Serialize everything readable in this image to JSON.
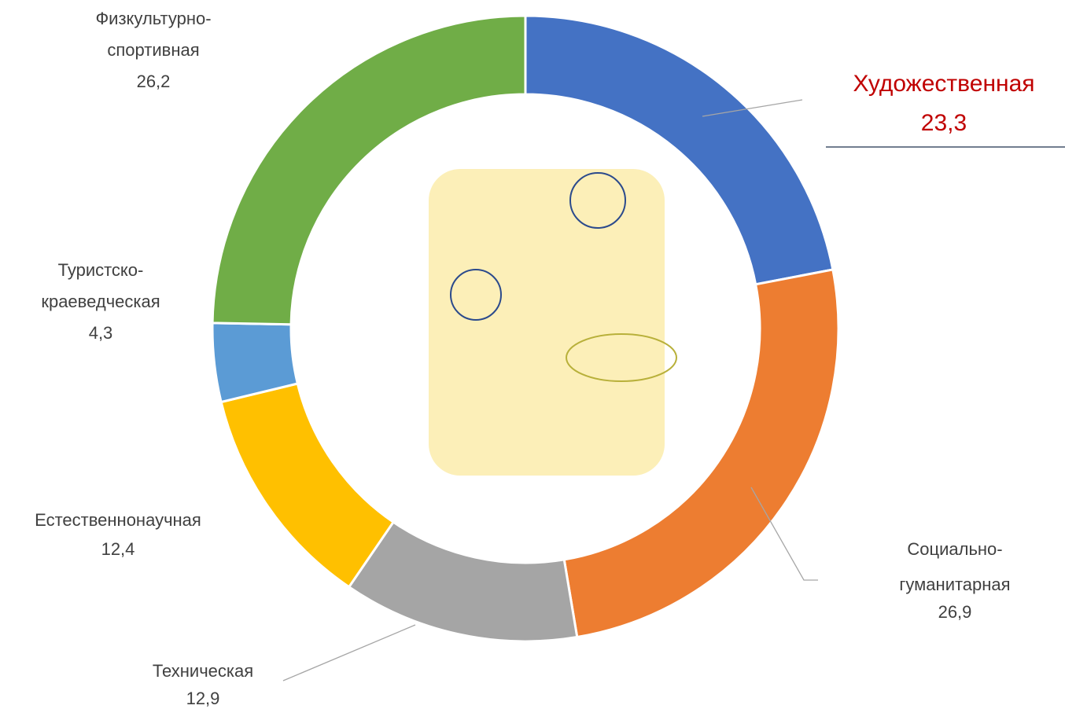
{
  "chart_data": {
    "type": "donut",
    "categories": [
      "Художественная",
      "Социально-гуманитарная",
      "Техническая",
      "Естественнонаучная",
      "Туристско-краеведческая",
      "Физкультурно-спортивная"
    ],
    "values": [
      23.3,
      26.9,
      12.9,
      12.4,
      4.3,
      26.2
    ],
    "value_labels": [
      "23,3",
      "26,9",
      "12,9",
      "12,4",
      "4,3",
      "26,2"
    ],
    "colors": [
      "#4472c4",
      "#ed7d31",
      "#a5a5a5",
      "#ffc000",
      "#5b9bd5",
      "#70ad47"
    ]
  }
}
